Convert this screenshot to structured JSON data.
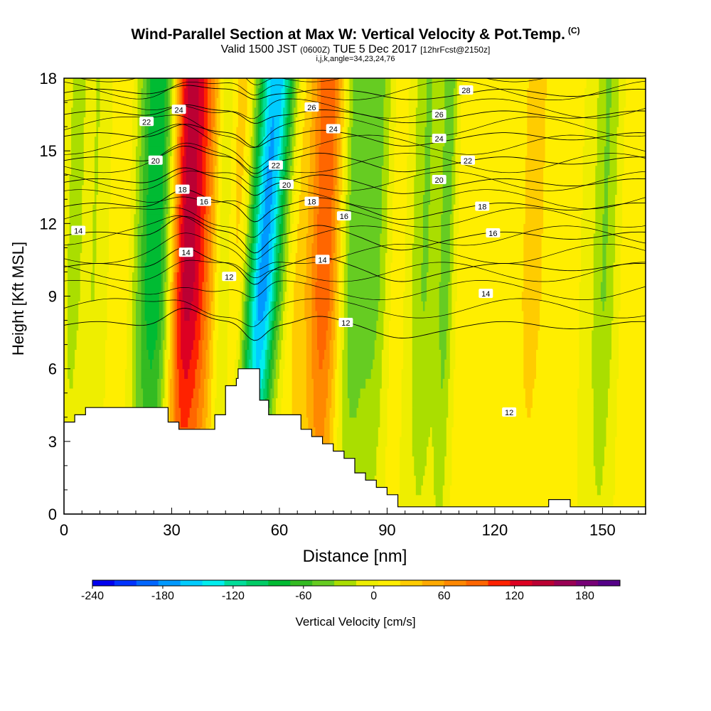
{
  "title": {
    "main": "Wind-Parallel Section at Max W: Vertical Velocity & Pot.Temp.",
    "copyright": "(C)",
    "valid_prefix": "Valid 1500 JST",
    "valid_utc": "(0600Z)",
    "valid_date": "TUE 5 Dec 2017",
    "forecast": "[12hrFcst@2150z]",
    "indices": "i,j,k,angle=34,23,24,76"
  },
  "chart_data": {
    "type": "heatmap",
    "xlabel": "Distance [nm]",
    "ylabel": "Height [Kft MSL]",
    "xlim": [
      0,
      162
    ],
    "ylim": [
      0,
      18
    ],
    "x_ticks": [
      0,
      30,
      60,
      90,
      120,
      150
    ],
    "y_ticks": [
      0,
      3,
      6,
      9,
      12,
      15,
      18
    ],
    "colorbar": {
      "label": "Vertical Velocity [cm/s]",
      "range": [
        -240,
        210
      ],
      "tick_values": [
        -240,
        -180,
        -120,
        -60,
        0,
        60,
        120,
        180
      ],
      "tick_labels": [
        "-240",
        "-180",
        "-120",
        "-60",
        "0",
        "60",
        "120",
        "180"
      ],
      "colors": [
        "#0000ee",
        "#0033ff",
        "#0066ff",
        "#0099ff",
        "#00ccff",
        "#00eeee",
        "#00dd99",
        "#00cc66",
        "#00bb33",
        "#33bb22",
        "#66cc22",
        "#aade00",
        "#eeee00",
        "#ffee00",
        "#ffcc00",
        "#ffaa00",
        "#ff8800",
        "#ff6600",
        "#ff2200",
        "#dd0022",
        "#bb0033",
        "#990055",
        "#770077",
        "#550088"
      ]
    },
    "velocity_columns": [
      {
        "x": 2,
        "w": 2.0,
        "v": -25
      },
      {
        "x": 8,
        "w": 2.5,
        "v": -20
      },
      {
        "x": 15,
        "w": 2.0,
        "v": 18
      },
      {
        "x": 22,
        "w": 2.5,
        "v": -40
      },
      {
        "x": 26,
        "w": 3.0,
        "v": -80
      },
      {
        "x": 33,
        "w": 3.0,
        "v": 120
      },
      {
        "x": 38,
        "w": 3.0,
        "v": 70
      },
      {
        "x": 44,
        "w": 2.0,
        "v": -30
      },
      {
        "x": 48,
        "w": 2.5,
        "v": 35
      },
      {
        "x": 53,
        "w": 3.5,
        "v": -190
      },
      {
        "x": 58,
        "w": 2.0,
        "v": 20
      },
      {
        "x": 64,
        "w": 3.0,
        "v": 25
      },
      {
        "x": 72,
        "w": 3.0,
        "v": 90
      },
      {
        "x": 80,
        "w": 2.5,
        "v": -50
      },
      {
        "x": 86,
        "w": 3.0,
        "v": -45
      },
      {
        "x": 92,
        "w": 2.0,
        "v": 15
      },
      {
        "x": 100,
        "w": 3.0,
        "v": -40
      },
      {
        "x": 106,
        "w": 1.5,
        "v": -45
      },
      {
        "x": 112,
        "w": 2.5,
        "v": 10
      },
      {
        "x": 130,
        "w": 3.0,
        "v": 25
      },
      {
        "x": 150,
        "w": 2.5,
        "v": -40
      },
      {
        "x": 158,
        "w": 2.5,
        "v": 15
      }
    ],
    "terrain": [
      [
        0,
        3.8
      ],
      [
        3,
        3.8
      ],
      [
        3,
        4.1
      ],
      [
        6,
        4.1
      ],
      [
        6,
        4.4
      ],
      [
        29,
        4.4
      ],
      [
        29,
        3.8
      ],
      [
        32,
        3.8
      ],
      [
        32,
        3.5
      ],
      [
        42,
        3.5
      ],
      [
        42,
        4.1
      ],
      [
        45,
        4.1
      ],
      [
        45,
        5.3
      ],
      [
        48,
        5.3
      ],
      [
        48,
        5.6
      ],
      [
        48.5,
        5.6
      ],
      [
        48.5,
        6.0
      ],
      [
        54.5,
        6.0
      ],
      [
        54.5,
        4.7
      ],
      [
        57,
        4.7
      ],
      [
        57,
        4.1
      ],
      [
        66,
        4.1
      ],
      [
        66,
        3.5
      ],
      [
        69,
        3.5
      ],
      [
        69,
        3.2
      ],
      [
        72,
        3.2
      ],
      [
        72,
        2.9
      ],
      [
        75,
        2.9
      ],
      [
        75,
        2.6
      ],
      [
        78,
        2.6
      ],
      [
        78,
        2.3
      ],
      [
        81,
        2.3
      ],
      [
        81,
        1.7
      ],
      [
        84,
        1.7
      ],
      [
        84,
        1.4
      ],
      [
        87,
        1.4
      ],
      [
        87,
        1.1
      ],
      [
        90,
        1.1
      ],
      [
        90,
        0.8
      ],
      [
        93,
        0.8
      ],
      [
        93,
        0.3
      ],
      [
        135,
        0.3
      ],
      [
        135,
        0.6
      ],
      [
        141,
        0.6
      ],
      [
        141,
        0.3
      ],
      [
        162,
        0.3
      ]
    ],
    "theta_contours": [
      {
        "label": "12",
        "y0": 7.8,
        "bump": 0.8
      },
      {
        "label": "14",
        "y0": 10.2,
        "bump": 0.9
      },
      {
        "label": "16",
        "y0": 11.5,
        "bump": 0.9
      },
      {
        "label": "18",
        "y0": 12.7,
        "bump": 0.8
      },
      {
        "label": "20",
        "y0": 13.7,
        "bump": 0.7
      },
      {
        "label": "22",
        "y0": 14.6,
        "bump": 0.7
      },
      {
        "label": "24",
        "y0": 15.6,
        "bump": 0.6
      },
      {
        "label": "26",
        "y0": 16.5,
        "bump": 0.5
      },
      {
        "label": "28",
        "y0": 17.4,
        "bump": 0.4
      }
    ],
    "contour_labels": [
      {
        "text": "14",
        "x": 4,
        "y": 11.7
      },
      {
        "text": "22",
        "x": 23,
        "y": 16.2
      },
      {
        "text": "20",
        "x": 25.5,
        "y": 14.6
      },
      {
        "text": "24",
        "x": 32,
        "y": 16.7
      },
      {
        "text": "18",
        "x": 33,
        "y": 13.4
      },
      {
        "text": "16",
        "x": 39,
        "y": 12.9
      },
      {
        "text": "14",
        "x": 34,
        "y": 10.8
      },
      {
        "text": "12",
        "x": 46,
        "y": 9.8
      },
      {
        "text": "22",
        "x": 59,
        "y": 14.4
      },
      {
        "text": "20",
        "x": 62,
        "y": 13.6
      },
      {
        "text": "26",
        "x": 69,
        "y": 16.8
      },
      {
        "text": "24",
        "x": 75,
        "y": 15.9
      },
      {
        "text": "18",
        "x": 69,
        "y": 12.9
      },
      {
        "text": "16",
        "x": 78,
        "y": 12.3
      },
      {
        "text": "14",
        "x": 72,
        "y": 10.5
      },
      {
        "text": "12",
        "x": 78.5,
        "y": 7.9
      },
      {
        "text": "28",
        "x": 112,
        "y": 17.5
      },
      {
        "text": "26",
        "x": 104.5,
        "y": 16.5
      },
      {
        "text": "24",
        "x": 104.5,
        "y": 15.5
      },
      {
        "text": "22",
        "x": 112.5,
        "y": 14.6
      },
      {
        "text": "20",
        "x": 104.5,
        "y": 13.8
      },
      {
        "text": "18",
        "x": 116.5,
        "y": 12.7
      },
      {
        "text": "16",
        "x": 119.5,
        "y": 11.6
      },
      {
        "text": "14",
        "x": 117.5,
        "y": 9.1
      },
      {
        "text": "12",
        "x": 124,
        "y": 4.2
      }
    ]
  }
}
